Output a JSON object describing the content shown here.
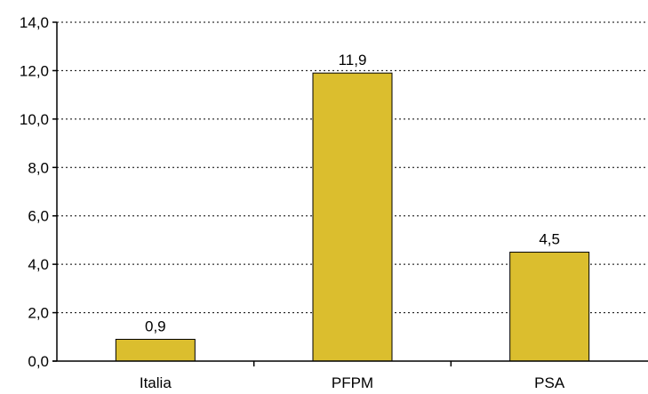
{
  "chart_data": {
    "type": "bar",
    "categories": [
      "Italia",
      "PFPM",
      "PSA"
    ],
    "values": [
      0.9,
      11.9,
      4.5
    ],
    "data_labels": [
      "0,9",
      "11,9",
      "4,5"
    ],
    "title": "",
    "xlabel": "",
    "ylabel": "",
    "ylim": [
      0,
      14
    ],
    "y_ticks": [
      0,
      2,
      4,
      6,
      8,
      10,
      12,
      14
    ],
    "y_tick_labels": [
      "0,0",
      "2,0",
      "4,0",
      "6,0",
      "8,0",
      "10,0",
      "12,0",
      "14,0"
    ],
    "grid": "horizontal dotted",
    "legend": "none",
    "colors": {
      "bar_fill": "#DBBE2E",
      "bar_stroke": "#000000",
      "grid": "#000000",
      "axis": "#000000"
    }
  }
}
